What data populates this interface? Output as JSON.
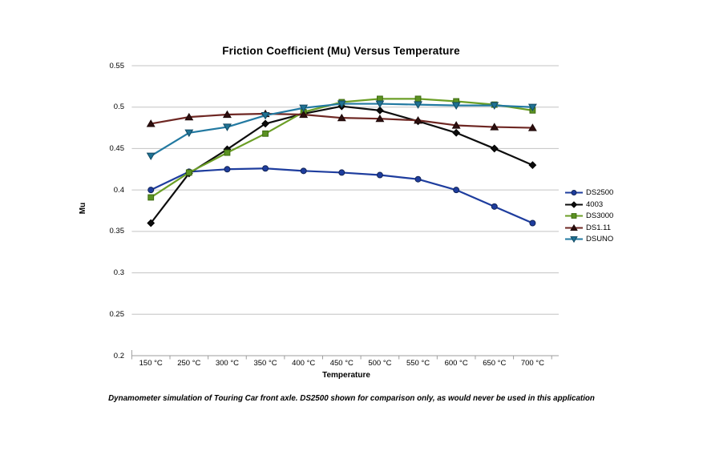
{
  "chart_data": {
    "type": "line",
    "title": "Friction Coefficient (Mu) Versus Temperature",
    "xlabel": "Temperature",
    "ylabel": "Mu",
    "annotation": "Dynamometer simulation of Touring Car front axle. DS2500 shown for comparison only, as would never be used in this application",
    "categories": [
      "150 °C",
      "250 °C",
      "300 °C",
      "350 °C",
      "400 °C",
      "450 °C",
      "500 °C",
      "550 °C",
      "600 °C",
      "650 °C",
      "700 °C"
    ],
    "series": [
      {
        "name": "DS2500",
        "marker": "circle",
        "line_color": "#1E3D9E",
        "marker_fill": "#1E3D9E",
        "marker_edge": "#122457",
        "values": [
          0.4,
          0.422,
          0.425,
          0.426,
          0.423,
          0.421,
          0.418,
          0.413,
          0.4,
          0.38,
          0.36
        ]
      },
      {
        "name": "4003",
        "marker": "diamond",
        "line_color": "#0D0D0D",
        "marker_fill": "#0D0D0D",
        "marker_edge": "#000000",
        "values": [
          0.36,
          0.42,
          0.449,
          0.48,
          0.492,
          0.501,
          0.496,
          0.483,
          0.469,
          0.45,
          0.43
        ]
      },
      {
        "name": "DS3000",
        "marker": "square",
        "line_color": "#6B9E26",
        "marker_fill": "#5B9222",
        "marker_edge": "#3E6B10",
        "values": [
          0.391,
          0.421,
          0.445,
          0.468,
          0.494,
          0.506,
          0.51,
          0.51,
          0.507,
          0.503,
          0.496
        ]
      },
      {
        "name": "DS1.11",
        "marker": "triangle-up",
        "line_color": "#6E2723",
        "marker_fill": "#2E0F0F",
        "marker_edge": "#1C0707",
        "values": [
          0.48,
          0.488,
          0.491,
          0.492,
          0.491,
          0.487,
          0.486,
          0.484,
          0.478,
          0.476,
          0.475
        ]
      },
      {
        "name": "DSUNO",
        "marker": "triangle-down",
        "line_color": "#2279A1",
        "marker_fill": "#1F7294",
        "marker_edge": "#124A63",
        "values": [
          0.441,
          0.469,
          0.476,
          0.49,
          0.499,
          0.504,
          0.504,
          0.503,
          0.502,
          0.502,
          0.5
        ]
      }
    ],
    "ylim": [
      0.2,
      0.55
    ],
    "yticks": [
      {
        "value": 0.55,
        "label": "0.55"
      },
      {
        "value": 0.5,
        "label": "0.5"
      },
      {
        "value": 0.45,
        "label": "0.45"
      },
      {
        "value": 0.4,
        "label": "0.4"
      },
      {
        "value": 0.35,
        "label": "0.35"
      },
      {
        "value": 0.3,
        "label": "0.3"
      },
      {
        "value": 0.25,
        "label": "0.25"
      },
      {
        "value": 0.2,
        "label": "0.2"
      }
    ],
    "grid": "horizontal",
    "legend_position": "right",
    "colors": {
      "gridline": "#C3C3C3",
      "axis": "#9E9E9E",
      "text": "#000000",
      "background": "#FFFFFF"
    }
  }
}
